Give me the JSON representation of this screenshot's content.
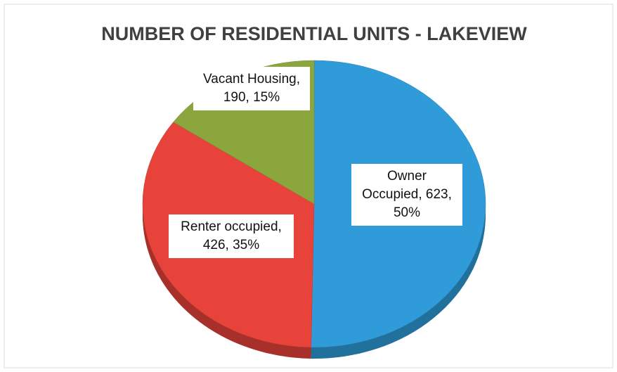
{
  "chart_data": {
    "type": "pie",
    "title": "NUMBER OF RESIDENTIAL UNITS - LAKEVIEW",
    "categories": [
      "Owner Occupied",
      "Renter occupied",
      "Vacant Housing"
    ],
    "values": [
      623,
      426,
      190
    ],
    "value_labels": [
      "Owner Occupied, 623, 50%",
      "Renter occupied, 426, 35%",
      "Vacant Housing, 190, 15%"
    ],
    "colors": [
      "#2f9bd8",
      "#e8433b",
      "#8ba63c"
    ]
  }
}
